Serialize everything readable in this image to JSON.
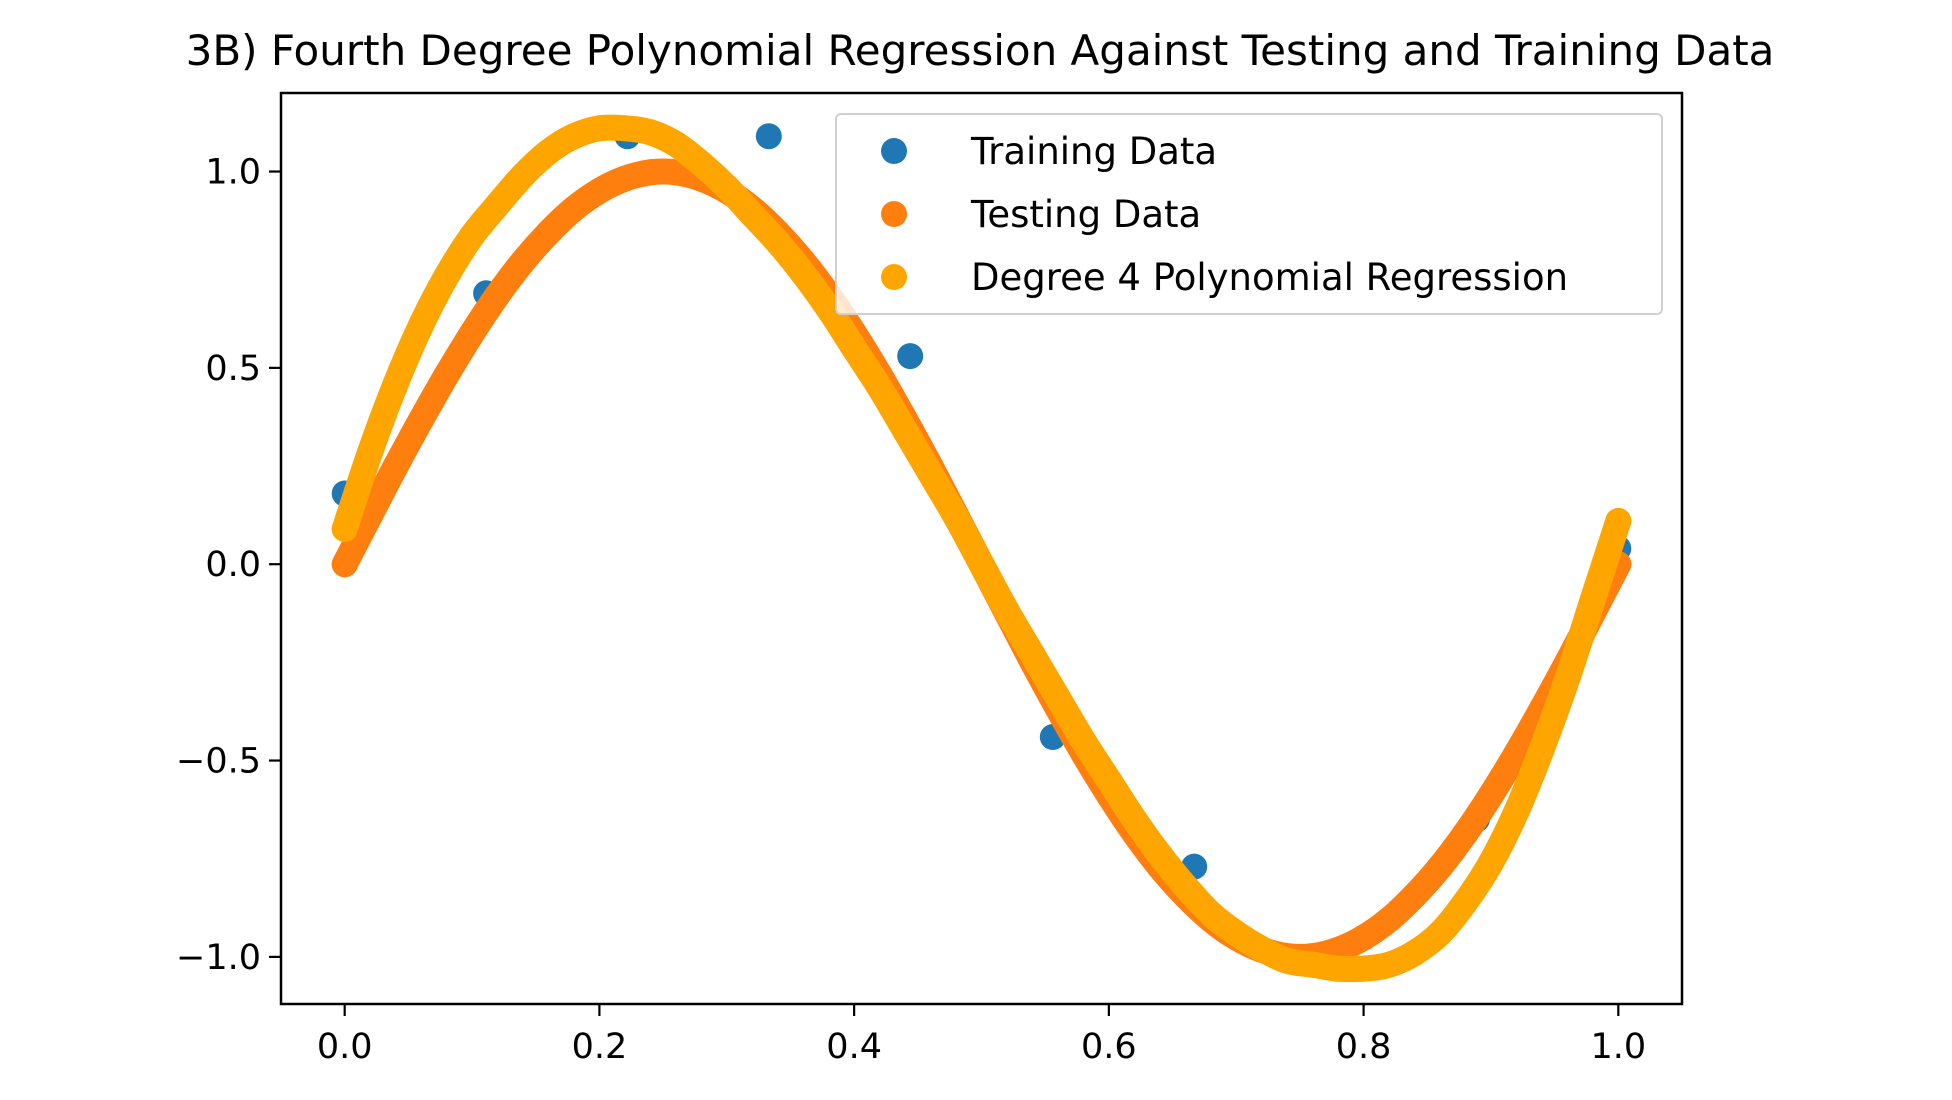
{
  "chart_data": {
    "type": "scatter",
    "title": "3B) Fourth Degree Polynomial Regression Against Testing and Training Data",
    "xlabel": "",
    "ylabel": "",
    "xlim": [
      -0.05,
      1.05
    ],
    "ylim": [
      -1.12,
      1.2
    ],
    "x_ticks": [
      0.0,
      0.2,
      0.4,
      0.6,
      0.8,
      1.0
    ],
    "x_tick_labels": [
      "0.0",
      "0.2",
      "0.4",
      "0.6",
      "0.8",
      "1.0"
    ],
    "y_ticks": [
      -1.0,
      -0.5,
      0.0,
      0.5,
      1.0
    ],
    "y_tick_labels": [
      "−1.0",
      "−0.5",
      "0.0",
      "0.5",
      "1.0"
    ],
    "grid": false,
    "legend_position": "top-right",
    "series": [
      {
        "name": "Training Data",
        "color": "#1f77b4",
        "x": [
          0.0,
          0.111,
          0.222,
          0.333,
          0.444,
          0.556,
          0.667,
          0.778,
          0.889,
          1.0
        ],
        "y": [
          0.18,
          0.69,
          1.09,
          1.09,
          0.53,
          -0.44,
          -0.77,
          -1.01,
          -0.65,
          0.04
        ]
      },
      {
        "name": "Testing Data",
        "color": "#ff7f0e",
        "x": [
          0.0,
          0.02,
          0.04,
          0.06,
          0.08,
          0.1,
          0.12,
          0.14,
          0.16,
          0.18,
          0.2,
          0.22,
          0.24,
          0.26,
          0.28,
          0.3,
          0.32,
          0.34,
          0.36,
          0.38,
          0.4,
          0.42,
          0.44,
          0.46,
          0.48,
          0.5,
          0.52,
          0.54,
          0.56,
          0.58,
          0.6,
          0.62,
          0.64,
          0.66,
          0.68,
          0.7,
          0.72,
          0.74,
          0.76,
          0.78,
          0.8,
          0.82,
          0.84,
          0.86,
          0.88,
          0.9,
          0.92,
          0.94,
          0.96,
          0.98,
          1.0
        ],
        "y": [
          0.0,
          0.125,
          0.249,
          0.368,
          0.482,
          0.588,
          0.685,
          0.771,
          0.844,
          0.905,
          0.951,
          0.982,
          0.998,
          0.998,
          0.982,
          0.951,
          0.905,
          0.844,
          0.771,
          0.685,
          0.588,
          0.482,
          0.368,
          0.249,
          0.125,
          0.0,
          -0.125,
          -0.249,
          -0.368,
          -0.482,
          -0.588,
          -0.685,
          -0.771,
          -0.844,
          -0.905,
          -0.951,
          -0.982,
          -0.998,
          -0.998,
          -0.982,
          -0.951,
          -0.905,
          -0.844,
          -0.771,
          -0.685,
          -0.588,
          -0.482,
          -0.368,
          -0.249,
          -0.125,
          0.0
        ]
      },
      {
        "name": "Degree 4 Polynomial Regression",
        "color": "#ffa500",
        "x": [
          0.0,
          0.02,
          0.04,
          0.06,
          0.08,
          0.1,
          0.12,
          0.14,
          0.16,
          0.18,
          0.2,
          0.22,
          0.24,
          0.26,
          0.28,
          0.3,
          0.32,
          0.34,
          0.36,
          0.38,
          0.4,
          0.42,
          0.44,
          0.46,
          0.48,
          0.5,
          0.52,
          0.54,
          0.56,
          0.58,
          0.6,
          0.62,
          0.64,
          0.66,
          0.68,
          0.7,
          0.72,
          0.74,
          0.76,
          0.78,
          0.8,
          0.82,
          0.84,
          0.86,
          0.88,
          0.9,
          0.92,
          0.94,
          0.96,
          0.98,
          1.0
        ],
        "y": [
          0.09,
          0.286,
          0.459,
          0.609,
          0.734,
          0.836,
          0.915,
          0.99,
          1.05,
          1.09,
          1.11,
          1.11,
          1.1,
          1.07,
          1.02,
          0.96,
          0.89,
          0.82,
          0.74,
          0.65,
          0.55,
          0.45,
          0.34,
          0.23,
          0.12,
          0.0,
          -0.12,
          -0.23,
          -0.34,
          -0.45,
          -0.55,
          -0.65,
          -0.74,
          -0.82,
          -0.89,
          -0.94,
          -0.98,
          -1.01,
          -1.02,
          -1.03,
          -1.03,
          -1.02,
          -0.99,
          -0.94,
          -0.86,
          -0.76,
          -0.63,
          -0.47,
          -0.29,
          -0.09,
          0.11
        ]
      }
    ]
  }
}
